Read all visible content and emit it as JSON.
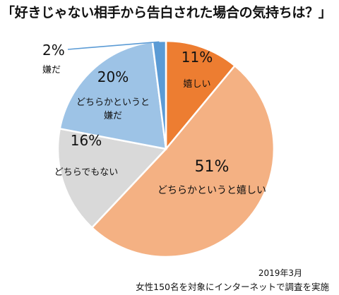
{
  "chart_data": {
    "type": "pie",
    "title": "「好きじゃない相手から告白された場合の気持ちは？」",
    "categories": [
      "嬉しい",
      "どちらかというと嬉しい",
      "どちらでもない",
      "どちらかというと嫌だ",
      "嫌だ"
    ],
    "values": [
      11,
      51,
      16,
      20,
      2
    ],
    "value_labels": [
      "11%",
      "51%",
      "16%",
      "20%",
      "2%"
    ],
    "label_lines": [
      [
        "嬉しい"
      ],
      [
        "どちらかというと嬉しい"
      ],
      [
        "どちらでもない"
      ],
      [
        "どちらかというと",
        "嫌だ"
      ],
      [
        "嫌だ"
      ]
    ],
    "colors": [
      "#ED7D31",
      "#F4B183",
      "#D9D9D9",
      "#9DC3E6",
      "#5B9BD5"
    ],
    "start": "12 o'clock",
    "direction": "clockwise",
    "legend": "none"
  },
  "footer": {
    "date": "2019年3月",
    "note": "女性150名を対象にインターネットで調査を実施"
  }
}
